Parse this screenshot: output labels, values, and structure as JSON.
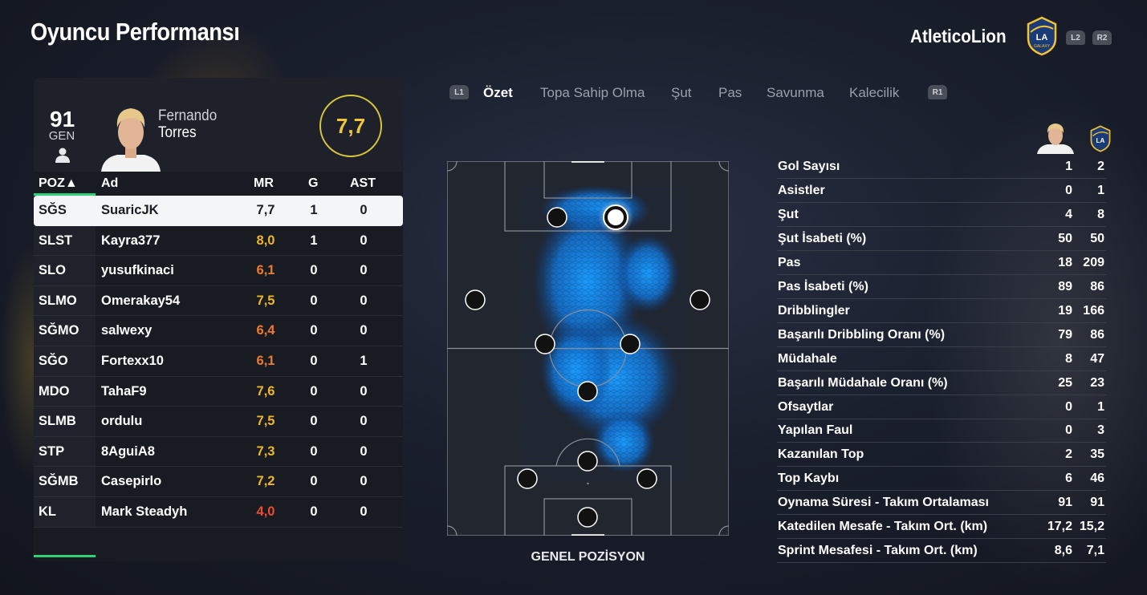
{
  "header": {
    "title": "Oyuncu Performansı",
    "club_name": "AtleticoLion",
    "club_crest": "la-galaxy-crest-icon",
    "btn_l2": "L2",
    "btn_r2": "R2"
  },
  "player": {
    "overall": "91",
    "overall_label": "GEN",
    "first_name": "Fernando",
    "last_name": "Torres",
    "rating": "7,7",
    "rating_color": "#f0c43a"
  },
  "table": {
    "headers": {
      "poz": "POZ▲",
      "ad": "Ad",
      "mr": "MR",
      "g": "G",
      "ast": "AST"
    },
    "rows": [
      {
        "poz": "SĞS",
        "ad": "SuaricJK",
        "mr": "7,7",
        "g": "1",
        "ast": "0",
        "mr_color": "#1b1d24",
        "selected": true
      },
      {
        "poz": "SLST",
        "ad": "Kayra377",
        "mr": "8,0",
        "g": "1",
        "ast": "0",
        "mr_color": "#f0b629"
      },
      {
        "poz": "SLO",
        "ad": "yusufkinaci",
        "mr": "6,1",
        "g": "0",
        "ast": "0",
        "mr_color": "#ee7a2e"
      },
      {
        "poz": "SLMO",
        "ad": "Omerakay54",
        "mr": "7,5",
        "g": "0",
        "ast": "0",
        "mr_color": "#f0b629"
      },
      {
        "poz": "SĞMO",
        "ad": "salwexy",
        "mr": "6,4",
        "g": "0",
        "ast": "0",
        "mr_color": "#ee7a2e"
      },
      {
        "poz": "SĞO",
        "ad": "Fortexx10",
        "mr": "6,1",
        "g": "0",
        "ast": "1",
        "mr_color": "#ee7a2e"
      },
      {
        "poz": "MDO",
        "ad": "TahaF9",
        "mr": "7,6",
        "g": "0",
        "ast": "0",
        "mr_color": "#f0b629"
      },
      {
        "poz": "SLMB",
        "ad": "ordulu",
        "mr": "7,5",
        "g": "0",
        "ast": "0",
        "mr_color": "#f0b629"
      },
      {
        "poz": "STP",
        "ad": "8AguiA8",
        "mr": "7,3",
        "g": "0",
        "ast": "0",
        "mr_color": "#f0b629"
      },
      {
        "poz": "SĞMB",
        "ad": "Casepirlo",
        "mr": "7,2",
        "g": "0",
        "ast": "0",
        "mr_color": "#f0b629"
      },
      {
        "poz": "KL",
        "ad": "Mark Steadyh",
        "mr": "4,0",
        "g": "0",
        "ast": "0",
        "mr_color": "#ee4a2e"
      }
    ]
  },
  "tabs": {
    "l1": "L1",
    "r1": "R1",
    "items": [
      "Özet",
      "Topa Sahip Olma",
      "Şut",
      "Pas",
      "Savunma",
      "Kalecilik"
    ],
    "active": 0
  },
  "pitch": {
    "label": "GENEL POZİSYON",
    "heatmap_color": "#1a8cff"
  },
  "stats": {
    "rows": [
      {
        "label": "Gol Sayısı",
        "a": "1",
        "b": "2"
      },
      {
        "label": "Asistler",
        "a": "0",
        "b": "1"
      },
      {
        "label": "Şut",
        "a": "4",
        "b": "8"
      },
      {
        "label": "Şut İsabeti (%)",
        "a": "50",
        "b": "50"
      },
      {
        "label": "Pas",
        "a": "18",
        "b": "209"
      },
      {
        "label": "Pas İsabeti (%)",
        "a": "89",
        "b": "86"
      },
      {
        "label": "Dribblingler",
        "a": "19",
        "b": "166"
      },
      {
        "label": "Başarılı Dribbling Oranı (%)",
        "a": "79",
        "b": "86"
      },
      {
        "label": "Müdahale",
        "a": "8",
        "b": "47"
      },
      {
        "label": "Başarılı Müdahale Oranı (%)",
        "a": "25",
        "b": "23"
      },
      {
        "label": "Ofsaytlar",
        "a": "0",
        "b": "1"
      },
      {
        "label": "Yapılan Faul",
        "a": "0",
        "b": "3"
      },
      {
        "label": "Kazanılan Top",
        "a": "2",
        "b": "35"
      },
      {
        "label": "Top Kaybı",
        "a": "6",
        "b": "46"
      },
      {
        "label": "Oynama Süresi - Takım Ortalaması",
        "a": "91",
        "b": "91"
      },
      {
        "label": "Katedilen Mesafe - Takım Ort. (km)",
        "a": "17,2",
        "b": "15,2"
      },
      {
        "label": "Sprint Mesafesi - Takım Ort. (km)",
        "a": "8,6",
        "b": "7,1"
      }
    ]
  }
}
